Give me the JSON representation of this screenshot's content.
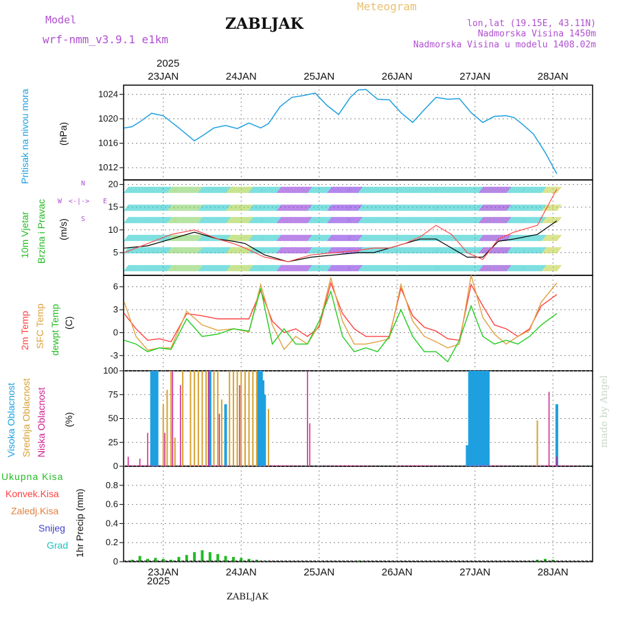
{
  "header": {
    "model_label": "Model",
    "model_name": "wrf-nmm_v3.9.1 e1km",
    "station": "ZABLJAK",
    "meteogram": "Meteogram",
    "lonlat": "lon,lat (19.15E, 43.11N)",
    "altitude": "Nadmorska Visina 1450m",
    "model_altitude": "Nadmorska Visina u modelu 1408.02m",
    "footer_station": "ZABLJAK",
    "credit": "made by Angel"
  },
  "colors": {
    "pressure": "#1ea0e0",
    "wind_black": "#000000",
    "wind_red": "#ff4a4a",
    "temp2m": "#ff4040",
    "sfc": "#e0a040",
    "dew": "#22cc22",
    "cloud_high": "#1ea0e0",
    "cloud_mid": "#d8a030",
    "cloud_low": "#d02090",
    "precip": "#22bb22"
  },
  "time_axis": {
    "year": "2025",
    "top_dates": [
      "23JAN",
      "24JAN",
      "25JAN",
      "26JAN",
      "27JAN",
      "28JAN"
    ],
    "bottom_dates": [
      "23JAN",
      "24JAN",
      "25JAN",
      "26JAN",
      "27JAN",
      "28JAN"
    ]
  },
  "chart_data": [
    {
      "type": "line",
      "title": "Pritisak na nivou mora",
      "ylabel": "(hPa)",
      "ylim": [
        1010,
        1025.5
      ],
      "yticks": [
        "1024",
        "1020",
        "1016",
        "1012"
      ],
      "grid": true,
      "x_days": [
        0,
        0.1,
        0.2,
        0.35,
        0.5,
        0.7,
        0.9,
        1.0,
        1.15,
        1.3,
        1.45,
        1.6,
        1.75,
        1.85,
        2.0,
        2.15,
        2.3,
        2.45,
        2.6,
        2.75,
        2.9,
        3.0,
        3.1,
        3.25,
        3.4,
        3.55,
        3.7,
        3.85,
        4.0,
        4.15,
        4.3,
        4.45,
        4.6,
        4.75,
        4.9,
        5.0,
        5.1,
        5.25,
        5.4,
        5.55
      ],
      "series": [
        {
          "name": "SLP",
          "values": [
            1018.5,
            1018.7,
            1019.5,
            1020.9,
            1020.5,
            1018.5,
            1016.4,
            1017.2,
            1018.5,
            1018.9,
            1018.4,
            1019.3,
            1018.5,
            1019.2,
            1022.0,
            1023.5,
            1023.8,
            1024.2,
            1022.2,
            1020.7,
            1023.5,
            1024.7,
            1024.8,
            1023.2,
            1023.1,
            1021.0,
            1019.4,
            1021.5,
            1023.5,
            1023.2,
            1023.3,
            1021.0,
            1019.4,
            1020.4,
            1020.5,
            1020.2,
            1019.2,
            1017.5,
            1014.5,
            1011.0
          ]
        }
      ]
    },
    {
      "type": "line",
      "title": "10m Vjetar",
      "subtitle": "Brzina i Pravac",
      "ylabel": "(m/s)",
      "ylim": [
        0,
        21
      ],
      "yticks": [
        "20",
        "15",
        "10",
        "5"
      ],
      "legend_dirs": [
        "N",
        "W",
        "<-|->",
        "E",
        "S"
      ],
      "x_days": [
        0,
        0.3,
        0.6,
        0.9,
        1.2,
        1.4,
        1.55,
        1.8,
        2.1,
        2.4,
        2.7,
        3.0,
        3.2,
        3.4,
        3.6,
        3.8,
        4.0,
        4.2,
        4.4,
        4.6,
        4.8,
        5.0,
        5.3,
        5.55
      ],
      "series": [
        {
          "name": "black",
          "values": [
            6,
            6.5,
            8,
            9.5,
            8,
            7.5,
            7,
            4.5,
            3,
            4,
            4.5,
            5,
            5,
            6,
            7,
            8,
            8,
            6,
            4,
            4,
            7.5,
            8,
            9,
            12
          ]
        },
        {
          "name": "red",
          "values": [
            5,
            7,
            9,
            10,
            8,
            7,
            6,
            4,
            3,
            4.5,
            5,
            5.5,
            6,
            6,
            7,
            8.5,
            11,
            9,
            5,
            3.5,
            8,
            9.5,
            11,
            19
          ]
        }
      ]
    },
    {
      "type": "line",
      "ylabel": "(C)",
      "ylim": [
        -5,
        7.5
      ],
      "yticks": [
        "6",
        "3",
        "0",
        "-3"
      ],
      "x_days": [
        0,
        0.15,
        0.3,
        0.45,
        0.6,
        0.8,
        1.0,
        1.2,
        1.4,
        1.6,
        1.75,
        1.9,
        2.05,
        2.2,
        2.35,
        2.5,
        2.65,
        2.8,
        2.95,
        3.1,
        3.25,
        3.4,
        3.55,
        3.7,
        3.85,
        4.0,
        4.15,
        4.3,
        4.45,
        4.6,
        4.75,
        4.9,
        5.05,
        5.2,
        5.35,
        5.55
      ],
      "series": [
        {
          "name": "2m Temp",
          "values": [
            2.5,
            0.5,
            -1,
            -0.8,
            -1.2,
            2.5,
            2.2,
            1.8,
            1.8,
            1.8,
            5.5,
            1.5,
            0,
            0.5,
            -0.5,
            0.7,
            6.5,
            2.5,
            0.5,
            -0.5,
            -0.5,
            -0.5,
            5.8,
            2.2,
            0.7,
            0.2,
            -0.8,
            -1,
            6.3,
            3.5,
            1,
            0.5,
            -0.5,
            0.5,
            3.5,
            5
          ]
        },
        {
          "name": "SFC Temp",
          "values": [
            4,
            -0.5,
            -2.3,
            -2,
            -2,
            2.8,
            1,
            0.3,
            0.5,
            0.1,
            6.3,
            1,
            -2.2,
            -0.5,
            -1.5,
            1,
            7.2,
            1.5,
            -1.5,
            -1.5,
            -1.2,
            -0.8,
            6.3,
            1.5,
            -0.5,
            -1.2,
            -2,
            -1.5,
            7.5,
            2,
            -0.2,
            -1.5,
            -0.5,
            0.3,
            4,
            6.5
          ]
        },
        {
          "name": "dewpt Temp",
          "values": [
            -1,
            -1.5,
            -2.5,
            -2,
            -2.2,
            1.8,
            -0.5,
            -0.2,
            0.5,
            0.2,
            5.8,
            -1.5,
            0.5,
            -1.5,
            -1.5,
            1.5,
            5.4,
            -0.5,
            -2.5,
            -2,
            -2.5,
            -0.5,
            3,
            -0.5,
            -2.5,
            -2.5,
            -3.8,
            -1,
            3.5,
            -0.5,
            -1.5,
            -1,
            -1.5,
            -0.5,
            1,
            2.5
          ]
        }
      ]
    },
    {
      "type": "bar",
      "ylabel": "(%)",
      "ylim": [
        0,
        100
      ],
      "yticks": [
        "100",
        "75",
        "50",
        "25",
        "0"
      ],
      "series": [
        {
          "name": "Visoka Oblacnost",
          "x_days": [
            0.35,
            0.37,
            0.4,
            0.42,
            1.1,
            1.3,
            1.72,
            1.74,
            1.76,
            1.78,
            1.8,
            4.4,
            4.43,
            4.46,
            4.49,
            4.52,
            4.55,
            4.58,
            4.61,
            4.64,
            4.67,
            5.55
          ],
          "values": [
            100,
            100,
            100,
            100,
            100,
            65,
            100,
            100,
            100,
            90,
            75,
            22,
            100,
            100,
            100,
            100,
            100,
            100,
            100,
            100,
            100,
            65
          ]
        },
        {
          "name": "Srednja Oblacnost",
          "x_days": [
            0.5,
            0.55,
            0.6,
            0.65,
            0.75,
            0.85,
            0.9,
            0.95,
            1.0,
            1.05,
            1.15,
            1.2,
            1.25,
            1.35,
            1.4,
            1.45,
            1.5,
            1.55,
            1.6,
            1.65,
            1.7,
            1.85,
            5.3
          ],
          "values": [
            65,
            80,
            100,
            30,
            100,
            100,
            100,
            100,
            100,
            100,
            100,
            100,
            70,
            100,
            100,
            100,
            100,
            100,
            100,
            100,
            100,
            60,
            48
          ]
        },
        {
          "name": "Niska Oblacnost",
          "x_days": [
            0.05,
            0.2,
            0.3,
            0.52,
            0.62,
            0.72,
            1.08,
            1.22,
            1.48,
            2.35,
            2.38,
            5.45,
            5.55
          ],
          "values": [
            10,
            8,
            35,
            35,
            100,
            85,
            100,
            55,
            85,
            100,
            45,
            78,
            10
          ]
        }
      ]
    },
    {
      "type": "bar",
      "ylabel": "1hr Precip (mm)",
      "ylim": [
        0,
        1
      ],
      "yticks": [
        "0.8",
        "0.6",
        "0.4",
        "0.2",
        "0"
      ],
      "legend": [
        "Ukupna Kisa",
        "Konvek.Kisa",
        "Zaledj.Kisa",
        "Snijeg",
        "Grad"
      ],
      "x_days": [
        0.1,
        0.2,
        0.3,
        0.4,
        0.5,
        0.6,
        0.7,
        0.8,
        0.9,
        1.0,
        1.1,
        1.2,
        1.3,
        1.4,
        1.5,
        1.6,
        1.7,
        1.8,
        3.0,
        5.3,
        5.4,
        5.5
      ],
      "values": [
        0.02,
        0.06,
        0.03,
        0.04,
        0.03,
        0.02,
        0.05,
        0.07,
        0.1,
        0.12,
        0.1,
        0.08,
        0.06,
        0.05,
        0.04,
        0.03,
        0.02,
        0.01,
        0.01,
        0.02,
        0.03,
        0.02
      ]
    }
  ]
}
